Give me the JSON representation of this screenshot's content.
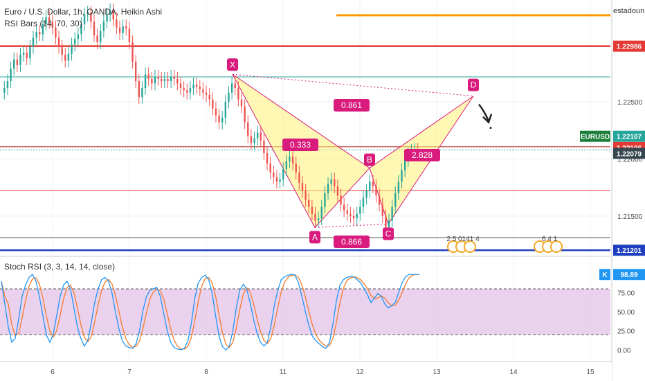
{
  "legend": {
    "title": "Euro / U.S. Dollar, 1h, OANDA, Heikin Ashi",
    "rsi": "RSI Bars (14, 70, 30)",
    "stoch": "Stoch RSI (3, 3, 14, 14, close)"
  },
  "top_right_label": "estadounic",
  "colors": {
    "up": "#26a69a",
    "down": "#ef5350",
    "pattern_fill": "#fff176",
    "pattern_label": "#d81b7c",
    "red_line": "#e53935",
    "blue_line": "#1e3fbf",
    "orange_line": "#ff9800",
    "teal_line": "#26a69a",
    "stoch_k": "#2196f3",
    "stoch_d": "#f57c2b",
    "stoch_band": "#e1bee7"
  },
  "chart_data": {
    "type": "candlestick",
    "symbol": "EURUSD",
    "timeframe": "1h",
    "price_axis": {
      "ticks": [
        "1.22500",
        "1.22000",
        "1.21500"
      ],
      "ylim": [
        1.2116,
        1.2339
      ]
    },
    "time_axis": {
      "ticks": [
        "6",
        "7",
        "8",
        "11",
        "12",
        "13",
        "14",
        "15"
      ]
    },
    "candles_hourly_close": [
      1.2262,
      1.2268,
      1.2279,
      1.2287,
      1.2282,
      1.2291,
      1.2293,
      1.2288,
      1.2298,
      1.2306,
      1.2311,
      1.2309,
      1.2318,
      1.2324,
      1.232,
      1.2315,
      1.2306,
      1.2298,
      1.2291,
      1.2286,
      1.2292,
      1.23,
      1.2305,
      1.2309,
      1.2318,
      1.2326,
      1.2328,
      1.232,
      1.2308,
      1.2302,
      1.2312,
      1.232,
      1.2326,
      1.233,
      1.2322,
      1.2315,
      1.231,
      1.2316,
      1.2314,
      1.2302,
      1.2285,
      1.2268,
      1.2254,
      1.2262,
      1.2274,
      1.227,
      1.2266,
      1.2272,
      1.227,
      1.2268,
      1.227,
      1.2268,
      1.2272,
      1.227,
      1.2266,
      1.2262,
      1.226,
      1.2258,
      1.2262,
      1.2265,
      1.2263,
      1.2261,
      1.2258,
      1.2256,
      1.2252,
      1.2244,
      1.2238,
      1.2232,
      1.2236,
      1.225,
      1.2258,
      1.2266,
      1.2262,
      1.2252,
      1.2246,
      1.2232,
      1.222,
      1.2214,
      1.2218,
      1.2223,
      1.2216,
      1.2205,
      1.2196,
      1.2188,
      1.2184,
      1.218,
      1.2182,
      1.2191,
      1.2198,
      1.2202,
      1.2196,
      1.2188,
      1.2179,
      1.2172,
      1.2164,
      1.2158,
      1.2152,
      1.2146,
      1.2148,
      1.2158,
      1.217,
      1.2178,
      1.2182,
      1.2176,
      1.2168,
      1.216,
      1.2155,
      1.2152,
      1.215,
      1.2148,
      1.2152,
      1.2158,
      1.2166,
      1.2172,
      1.218,
      1.2176,
      1.2168,
      1.216,
      1.215,
      1.214,
      1.2146,
      1.2158,
      1.217,
      1.218,
      1.219,
      1.2199,
      1.2204,
      1.2207,
      1.2208,
      1.2206
    ],
    "horizontal_levels": [
      {
        "price": 1.22986,
        "label": "1.22986",
        "color": "#e53935"
      },
      {
        "price": 1.22107,
        "label": "1.22107",
        "color": "#26a69a"
      },
      {
        "price": 1.22106,
        "label": "1.22106",
        "color": "#e53935"
      },
      {
        "price": 1.22079,
        "label": "1.22079",
        "color": "#26a69a"
      },
      {
        "price": 1.21201,
        "label": "1.21201",
        "color": "#1e3fbf"
      }
    ],
    "symbol_tag": "EURUSD",
    "harmonic_pattern": {
      "points": {
        "X": 1.2274,
        "A": 1.214,
        "B": 1.2192,
        "C": 1.2143,
        "D": 1.2255
      },
      "ratios": {
        "XB": "0.333",
        "XD": "0.861",
        "AC": "0.866",
        "BD": "2.828"
      }
    },
    "calendar_events": [
      {
        "label": "2 5 0141 4"
      },
      {
        "label": "6 4 1"
      }
    ],
    "stoch_rsi": {
      "axis_ticks": [
        "98.89",
        "75.00",
        "50.00",
        "25.00",
        "0.00"
      ],
      "current_k": "98.89",
      "k_label": "K",
      "upper": 80,
      "lower": 20,
      "k": [
        90,
        60,
        30,
        10,
        15,
        40,
        70,
        85,
        95,
        99,
        90,
        70,
        45,
        20,
        10,
        20,
        45,
        70,
        85,
        90,
        80,
        55,
        30,
        15,
        5,
        12,
        35,
        62,
        80,
        92,
        95,
        90,
        75,
        50,
        28,
        12,
        5,
        3,
        2,
        8,
        25,
        52,
        70,
        78,
        80,
        82,
        70,
        48,
        25,
        10,
        3,
        1,
        0,
        2,
        12,
        35,
        68,
        88,
        95,
        98,
        92,
        75,
        45,
        18,
        4,
        0,
        5,
        25,
        55,
        78,
        86,
        80,
        62,
        40,
        22,
        10,
        5,
        10,
        30,
        58,
        78,
        92,
        96,
        98,
        99,
        98,
        88,
        70,
        50,
        32,
        18,
        12,
        8,
        4,
        2,
        10,
        35,
        65,
        85,
        92,
        95,
        96,
        96,
        92,
        88,
        80,
        72,
        62,
        68,
        74,
        70,
        60,
        55,
        58,
        62,
        75,
        88,
        96,
        99,
        99,
        99,
        99
      ]
    }
  }
}
